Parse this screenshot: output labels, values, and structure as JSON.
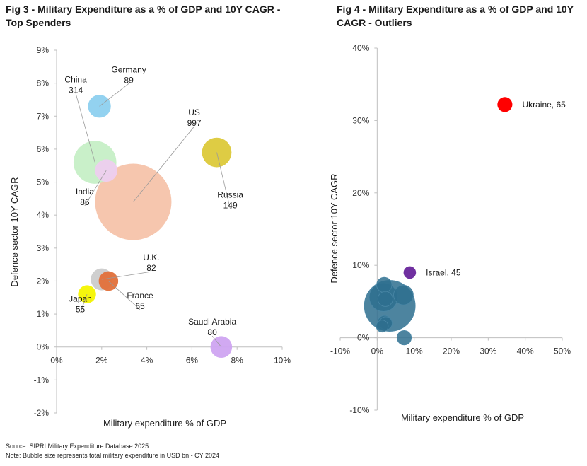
{
  "fig3": {
    "title": "Fig 3 - Military Expenditure as a % of GDP and 10Y CAGR - Top Spenders",
    "xlabel": "Military expenditure % of GDP",
    "ylabel": "Defence sector 10Y CAGR"
  },
  "fig4": {
    "title": "Fig 4 - Military Expenditure as a % of GDP and 10Y CAGR - Outliers",
    "xlabel": "Military expenditure % of GDP",
    "ylabel": "Defence sector 10Y CAGR"
  },
  "footer": {
    "source": "Source: SIPRI Military Expenditure Database 2025",
    "note": "Note: Bubble size represents total military expenditure in USD bn - CY 2024"
  },
  "chart_data": [
    {
      "type": "scatter",
      "bubble": true,
      "title": "Fig 3 - Military Expenditure as a % of GDP and 10Y CAGR - Top Spenders",
      "xlabel": "Military expenditure % of GDP",
      "ylabel": "Defence sector 10Y CAGR",
      "xlim": [
        0,
        10
      ],
      "ylim": [
        -2,
        9
      ],
      "xticks": [
        "0%",
        "2%",
        "4%",
        "6%",
        "8%",
        "10%"
      ],
      "yticks": [
        "-2%",
        "-1%",
        "0%",
        "1%",
        "2%",
        "3%",
        "4%",
        "5%",
        "6%",
        "7%",
        "8%",
        "9%"
      ],
      "grid": false,
      "points": [
        {
          "name": "US",
          "size_label": "997",
          "x": 3.4,
          "y": 4.4,
          "size": 997,
          "color": "#f5c3aa",
          "label_x": 6.1,
          "label_y": 6.9
        },
        {
          "name": "China",
          "size_label": "314",
          "x": 1.7,
          "y": 5.6,
          "size": 314,
          "color": "#c6efc6",
          "label_x": 0.85,
          "label_y": 7.9
        },
        {
          "name": "Russia",
          "size_label": "149",
          "x": 7.1,
          "y": 5.9,
          "size": 149,
          "color": "#dcc93a",
          "label_x": 7.7,
          "label_y": 4.4
        },
        {
          "name": "Germany",
          "size_label": "89",
          "x": 1.9,
          "y": 7.3,
          "size": 89,
          "color": "#8dd0ef",
          "label_x": 3.2,
          "label_y": 8.2
        },
        {
          "name": "India",
          "size_label": "86",
          "x": 2.2,
          "y": 5.35,
          "size": 86,
          "color": "#eecdef",
          "label_x": 1.25,
          "label_y": 4.5
        },
        {
          "name": "U.K.",
          "size_label": "82",
          "x": 2.0,
          "y": 2.05,
          "size": 82,
          "color": "#cccccc",
          "label_x": 4.2,
          "label_y": 2.5
        },
        {
          "name": "Saudi Arabia",
          "size_label": "80",
          "x": 7.3,
          "y": 0.0,
          "size": 80,
          "color": "#cfa4f1",
          "label_x": 6.9,
          "label_y": 0.55
        },
        {
          "name": "France",
          "size_label": "65",
          "x": 2.3,
          "y": 2.0,
          "size": 65,
          "color": "#e2703a",
          "label_x": 3.7,
          "label_y": 1.35
        },
        {
          "name": "Japan",
          "size_label": "55",
          "x": 1.35,
          "y": 1.6,
          "size": 55,
          "color": "#f5f500",
          "label_x": 1.05,
          "label_y": 1.25
        }
      ]
    },
    {
      "type": "scatter",
      "bubble": true,
      "title": "Fig 4 - Military Expenditure as a % of GDP and 10Y CAGR - Outliers",
      "xlabel": "Military expenditure % of GDP",
      "ylabel": "Defence sector 10Y CAGR",
      "xlim": [
        -10,
        50
      ],
      "ylim": [
        -10,
        40
      ],
      "xticks": [
        "-10%",
        "0%",
        "10%",
        "20%",
        "30%",
        "40%",
        "50%"
      ],
      "yticks": [
        "-10%",
        "0%",
        "10%",
        "20%",
        "30%",
        "40%"
      ],
      "grid": false,
      "points": [
        {
          "name": "",
          "x": 3.4,
          "y": 4.4,
          "size": 997,
          "color": "#2e6e8e",
          "label": ""
        },
        {
          "name": "",
          "x": 1.7,
          "y": 5.6,
          "size": 314,
          "color": "#2e6e8e",
          "label": ""
        },
        {
          "name": "",
          "x": 7.1,
          "y": 5.9,
          "size": 149,
          "color": "#2e6e8e",
          "label": ""
        },
        {
          "name": "",
          "x": 1.9,
          "y": 7.3,
          "size": 89,
          "color": "#2e6e8e",
          "label": ""
        },
        {
          "name": "",
          "x": 2.2,
          "y": 5.35,
          "size": 86,
          "color": "#2e6e8e",
          "label": ""
        },
        {
          "name": "",
          "x": 2.0,
          "y": 2.05,
          "size": 82,
          "color": "#2e6e8e",
          "label": ""
        },
        {
          "name": "",
          "x": 7.3,
          "y": 0.0,
          "size": 80,
          "color": "#2e6e8e",
          "label": ""
        },
        {
          "name": "",
          "x": 2.3,
          "y": 2.0,
          "size": 65,
          "color": "#2e6e8e",
          "label": ""
        },
        {
          "name": "",
          "x": 1.35,
          "y": 1.6,
          "size": 55,
          "color": "#2e6e8e",
          "label": ""
        },
        {
          "name": "Ukraine",
          "x": 34.5,
          "y": 32.2,
          "size": 65,
          "color": "#ff0000",
          "label": "Ukraine, 65"
        },
        {
          "name": "Israel",
          "x": 8.8,
          "y": 9.0,
          "size": 45,
          "color": "#7030a0",
          "label": "Israel, 45"
        }
      ]
    }
  ]
}
